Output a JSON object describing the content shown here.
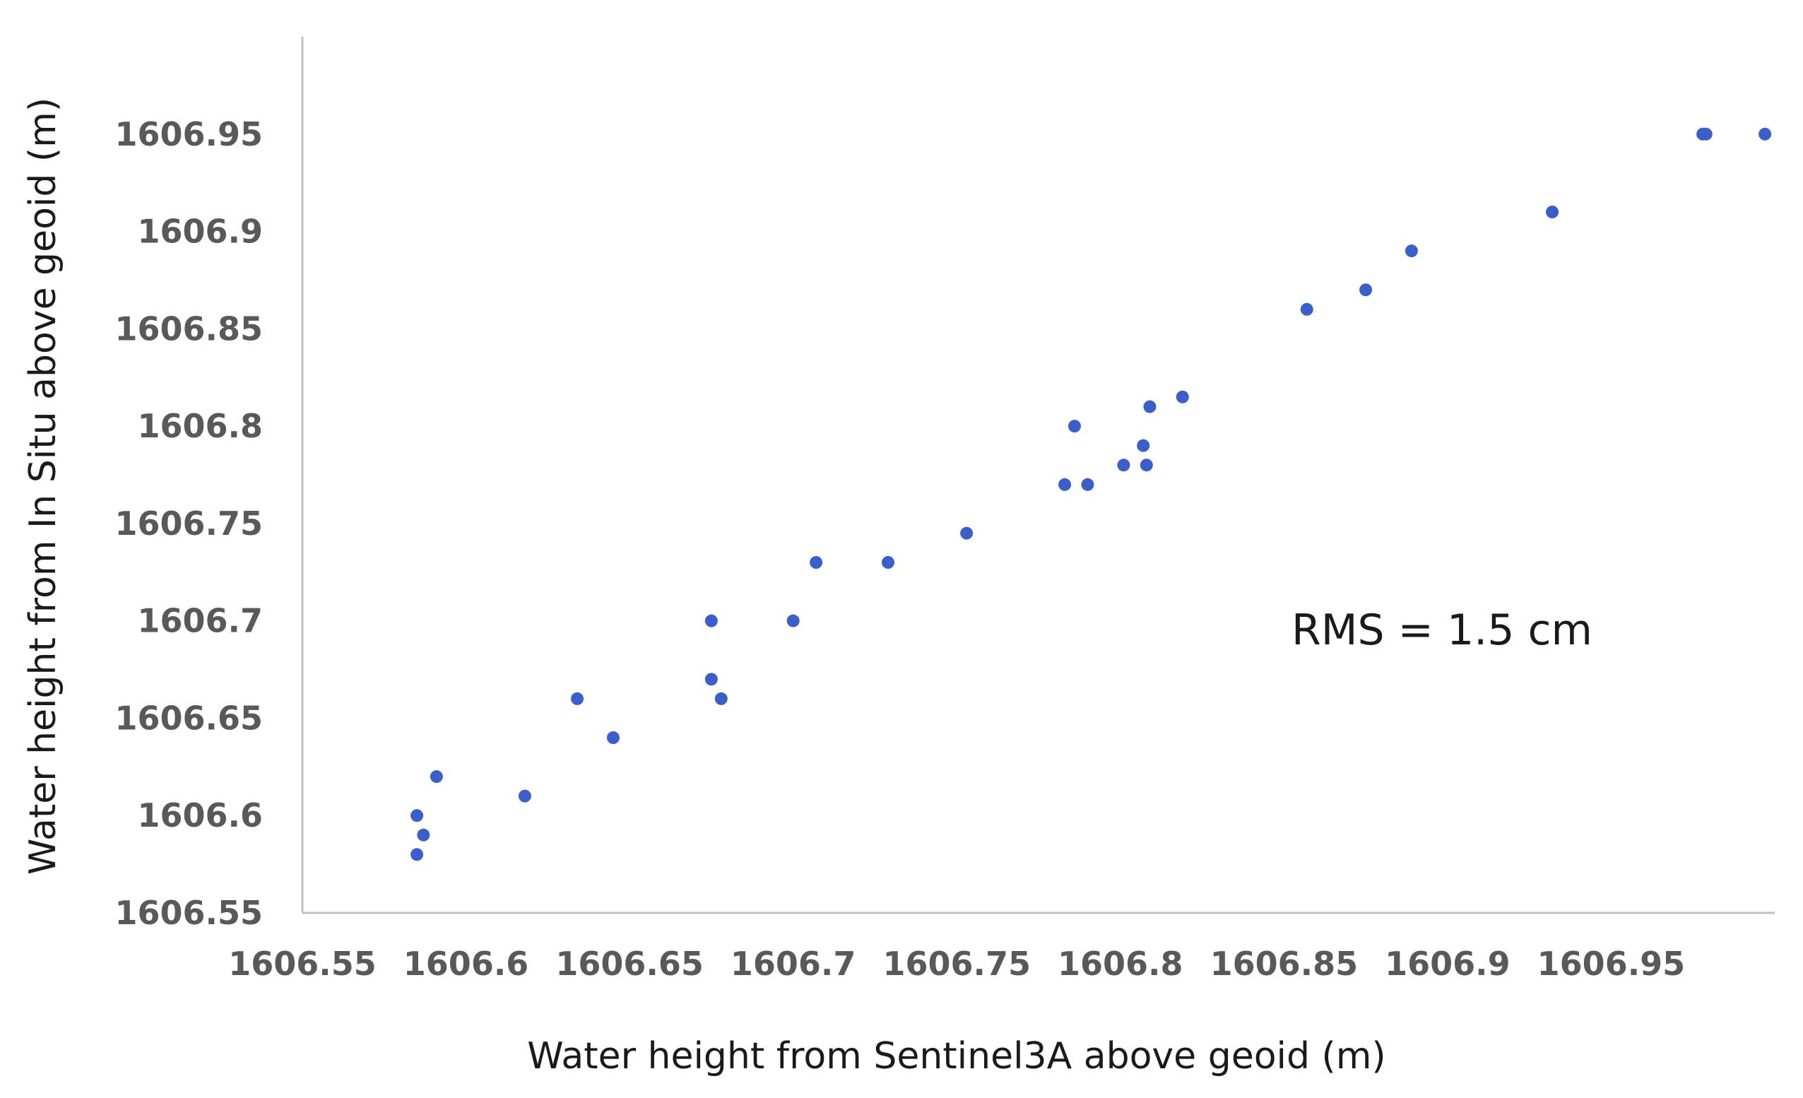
{
  "chart_data": {
    "type": "scatter",
    "title": "",
    "xlabel": "Water height from Sentinel3A above geoid   (m)",
    "ylabel": "Water height from In Situ  above geoid   (m)",
    "xlim": [
      1606.55,
      1607.0
    ],
    "ylim": [
      1606.55,
      1607.0
    ],
    "x_ticks": [
      1606.55,
      1606.6,
      1606.65,
      1606.7,
      1606.75,
      1606.8,
      1606.85,
      1606.9,
      1606.95
    ],
    "x_tick_labels": [
      "1606.55",
      "1606.6",
      "1606.65",
      "1606.7",
      "1606.75",
      "1606.8",
      "1606.85",
      "1606.9",
      "1606.95"
    ],
    "y_ticks": [
      1606.55,
      1606.6,
      1606.65,
      1606.7,
      1606.75,
      1606.8,
      1606.85,
      1606.9,
      1606.95
    ],
    "y_tick_labels": [
      "1606.55",
      "1606.6",
      "1606.65",
      "1606.7",
      "1606.75",
      "1606.8",
      "1606.85",
      "1606.9",
      "1606.95"
    ],
    "grid": false,
    "legend": "none",
    "annotation": "RMS = 1.5 cm",
    "series": [
      {
        "name": "Water height",
        "color": "#3a5fcd",
        "x": [
          1606.585,
          1606.587,
          1606.585,
          1606.591,
          1606.618,
          1606.634,
          1606.645,
          1606.675,
          1606.675,
          1606.678,
          1606.7,
          1606.707,
          1606.729,
          1606.753,
          1606.783,
          1606.786,
          1606.79,
          1606.801,
          1606.807,
          1606.808,
          1606.809,
          1606.819,
          1606.857,
          1606.875,
          1606.889,
          1606.932,
          1606.978,
          1606.979,
          1606.997
        ],
        "y": [
          1606.6,
          1606.59,
          1606.58,
          1606.62,
          1606.61,
          1606.66,
          1606.64,
          1606.7,
          1606.67,
          1606.66,
          1606.7,
          1606.73,
          1606.73,
          1606.745,
          1606.77,
          1606.8,
          1606.77,
          1606.78,
          1606.79,
          1606.78,
          1606.81,
          1606.815,
          1606.86,
          1606.87,
          1606.89,
          1606.91,
          1606.95,
          1606.95,
          1606.95
        ]
      }
    ]
  }
}
